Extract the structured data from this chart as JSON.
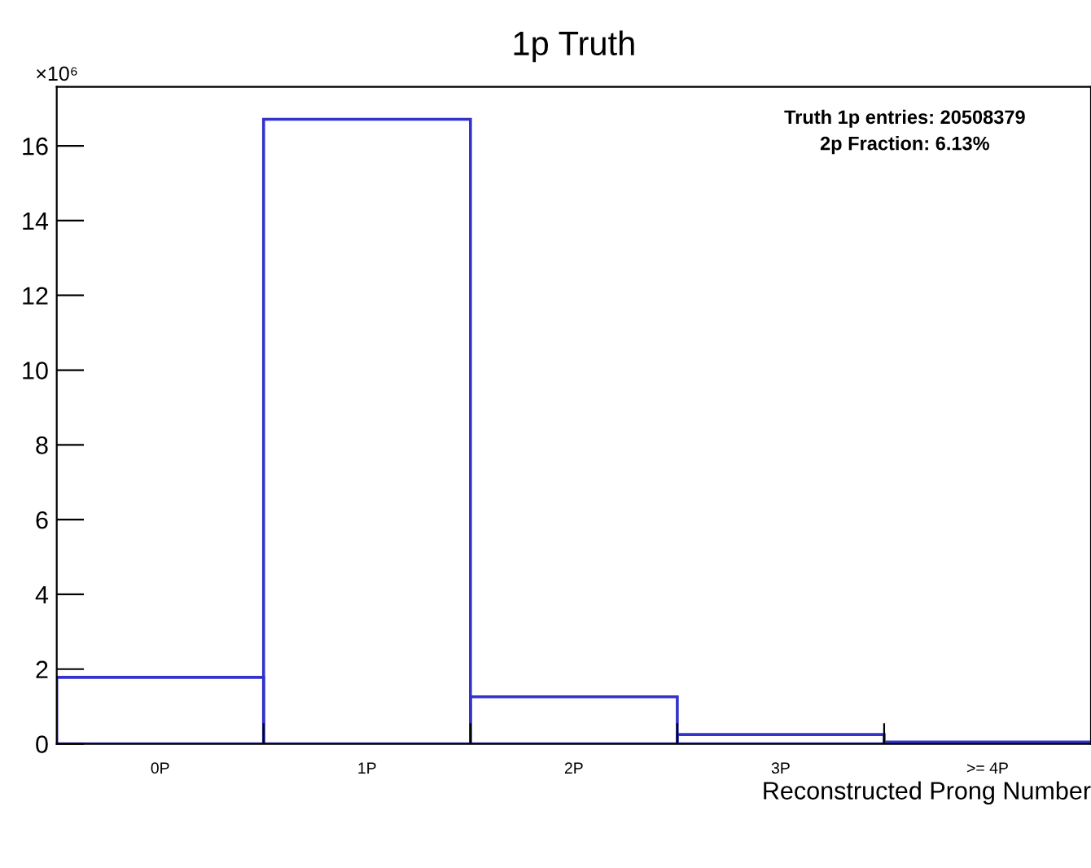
{
  "chart_data": {
    "type": "bar",
    "title": "1p Truth",
    "xlabel": "Reconstructed Prong Number",
    "categories": [
      "0P",
      "1P",
      "2P",
      "3P",
      ">= 4P"
    ],
    "values": [
      1.78,
      16.71,
      1.26,
      0.25,
      0.05
    ],
    "color": "#3333cc",
    "ylim": [
      0,
      17.58
    ],
    "yticks": [
      0,
      2,
      4,
      6,
      8,
      10,
      12,
      14,
      16
    ],
    "grid": false,
    "annotations": [
      "×10⁶",
      "Truth 1p entries: 20508379",
      "2p Fraction: 6.13%"
    ]
  }
}
